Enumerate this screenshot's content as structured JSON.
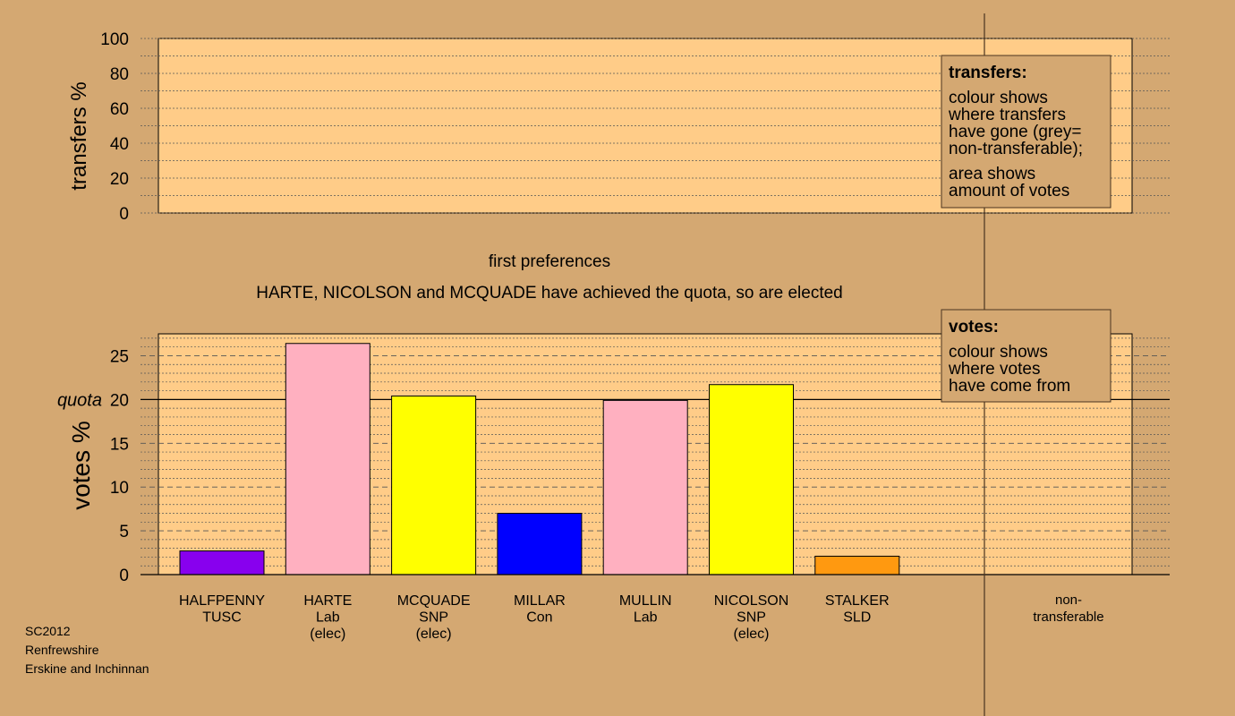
{
  "chart_data": [
    {
      "type": "bar",
      "panel": "transfers",
      "ylabel": "transfers %",
      "ylim": [
        0,
        100
      ],
      "yticks": [
        0,
        20,
        40,
        60,
        80,
        100
      ],
      "grid": true,
      "series": []
    },
    {
      "type": "bar",
      "panel": "votes",
      "title": "first preferences",
      "subtitle": "HARTE, NICOLSON and MCQUADE have achieved the quota, so are elected",
      "ylabel": "votes %",
      "ylim": [
        0,
        27.5
      ],
      "yticks": [
        0,
        5,
        10,
        15,
        20,
        25
      ],
      "grid": true,
      "quota": 20,
      "quota_label": "quota",
      "categories": [
        {
          "line1": "HALFPENNY",
          "line2": "TUSC",
          "line3": ""
        },
        {
          "line1": "HARTE",
          "line2": "Lab",
          "line3": "(elec)"
        },
        {
          "line1": "MCQUADE",
          "line2": "SNP",
          "line3": "(elec)"
        },
        {
          "line1": "MILLAR",
          "line2": "Con",
          "line3": ""
        },
        {
          "line1": "MULLIN",
          "line2": "Lab",
          "line3": ""
        },
        {
          "line1": "NICOLSON",
          "line2": "SNP",
          "line3": "(elec)"
        },
        {
          "line1": "STALKER",
          "line2": "SLD",
          "line3": ""
        }
      ],
      "values": [
        2.7,
        26.4,
        20.4,
        7.0,
        19.9,
        21.7,
        2.1
      ],
      "colors": [
        "#8800EE",
        "#FFB0C0",
        "#FFFF00",
        "#0000FF",
        "#FFB0C0",
        "#FFFF00",
        "#FF9910"
      ],
      "nontransferable_label": {
        "line1": "non-",
        "line2": "transferable"
      }
    }
  ],
  "legend_transfers": {
    "title": "transfers:",
    "lines1": [
      "colour shows",
      "where transfers",
      "have gone (grey=",
      "non-transferable);"
    ],
    "lines2": [
      "area shows",
      "amount of votes"
    ]
  },
  "legend_votes": {
    "title": "votes:",
    "lines": [
      "colour shows",
      "where votes",
      "have come from"
    ]
  },
  "footer": {
    "line1": "SC2012",
    "line2": "Renfrewshire",
    "line3": "Erskine and Inchinnan"
  },
  "colors": {
    "background": "#D4A872",
    "plot_fill": "#FFCC88",
    "legend_fill": "#D4A872"
  }
}
